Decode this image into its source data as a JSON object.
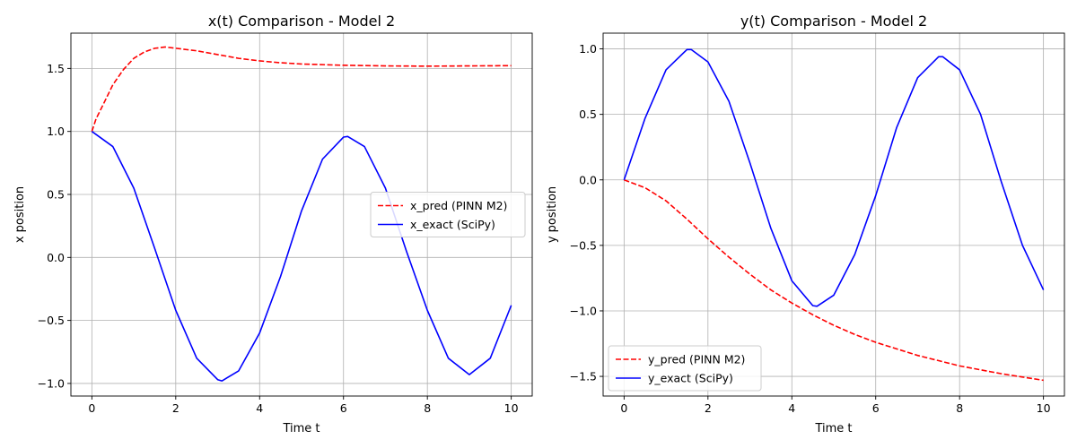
{
  "chart_data": [
    {
      "type": "line",
      "title": "x(t) Comparison - Model 2",
      "xlabel": "Time t",
      "ylabel": "x position",
      "xlim": [
        -0.5,
        10.5
      ],
      "ylim": [
        -1.1,
        1.78
      ],
      "xticks": [
        0,
        2,
        4,
        6,
        8,
        10
      ],
      "yticks": [
        -1.0,
        -0.5,
        0.0,
        0.5,
        1.0,
        1.5
      ],
      "grid": true,
      "legend_position": "center-right",
      "series": [
        {
          "name": "x_pred (PINN M2)",
          "color": "#ff0000",
          "style": "dashed",
          "x": [
            0,
            0.1,
            0.25,
            0.5,
            0.75,
            1.0,
            1.25,
            1.5,
            1.75,
            2.0,
            2.5,
            3.0,
            3.5,
            4.0,
            4.5,
            5.0,
            6.0,
            7.0,
            8.0,
            9.0,
            10.0
          ],
          "y": [
            1.0,
            1.1,
            1.2,
            1.37,
            1.49,
            1.58,
            1.63,
            1.66,
            1.67,
            1.66,
            1.64,
            1.61,
            1.58,
            1.56,
            1.545,
            1.535,
            1.525,
            1.52,
            1.518,
            1.52,
            1.522
          ]
        },
        {
          "name": "x_exact (SciPy)",
          "color": "#0000ff",
          "style": "solid",
          "x": [
            0,
            0.5,
            1.0,
            1.5,
            2.0,
            2.5,
            3.0,
            3.1,
            3.5,
            4.0,
            4.5,
            5.0,
            5.5,
            6.0,
            6.1,
            6.5,
            7.0,
            7.5,
            8.0,
            8.5,
            9.0,
            9.5,
            10.0
          ],
          "y": [
            1.0,
            0.88,
            0.55,
            0.07,
            -0.42,
            -0.8,
            -0.97,
            -0.98,
            -0.9,
            -0.6,
            -0.15,
            0.37,
            0.78,
            0.955,
            0.96,
            0.88,
            0.55,
            0.05,
            -0.42,
            -0.8,
            -0.93,
            -0.8,
            -0.38
          ]
        }
      ]
    },
    {
      "type": "line",
      "title": "y(t) Comparison - Model 2",
      "xlabel": "Time t",
      "ylabel": "y position",
      "xlim": [
        -0.5,
        10.5
      ],
      "ylim": [
        -1.65,
        1.12
      ],
      "xticks": [
        0,
        2,
        4,
        6,
        8,
        10
      ],
      "yticks": [
        -1.5,
        -1.0,
        -0.5,
        0.0,
        0.5,
        1.0
      ],
      "grid": true,
      "legend_position": "bottom-left",
      "series": [
        {
          "name": "y_pred (PINN M2)",
          "color": "#ff0000",
          "style": "dashed",
          "x": [
            0,
            0.5,
            1.0,
            1.5,
            2.0,
            2.5,
            3.0,
            3.5,
            4.0,
            4.5,
            5.0,
            5.5,
            6.0,
            6.5,
            7.0,
            7.5,
            8.0,
            8.5,
            9.0,
            9.5,
            10.0
          ],
          "y": [
            0.0,
            -0.06,
            -0.16,
            -0.3,
            -0.45,
            -0.59,
            -0.72,
            -0.84,
            -0.94,
            -1.03,
            -1.11,
            -1.18,
            -1.24,
            -1.29,
            -1.34,
            -1.38,
            -1.42,
            -1.45,
            -1.48,
            -1.505,
            -1.53
          ]
        },
        {
          "name": "y_exact (SciPy)",
          "color": "#0000ff",
          "style": "solid",
          "x": [
            0,
            0.5,
            1.0,
            1.5,
            1.6,
            2.0,
            2.5,
            3.0,
            3.5,
            4.0,
            4.5,
            4.6,
            5.0,
            5.5,
            6.0,
            6.5,
            7.0,
            7.5,
            7.6,
            8.0,
            8.5,
            9.0,
            9.5,
            10.0
          ],
          "y": [
            0.0,
            0.47,
            0.84,
            0.995,
            0.995,
            0.9,
            0.6,
            0.13,
            -0.37,
            -0.77,
            -0.96,
            -0.965,
            -0.88,
            -0.57,
            -0.12,
            0.4,
            0.78,
            0.94,
            0.94,
            0.84,
            0.5,
            -0.02,
            -0.5,
            -0.84
          ]
        }
      ]
    }
  ]
}
